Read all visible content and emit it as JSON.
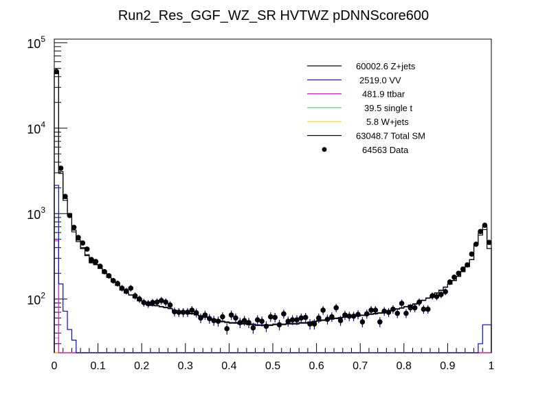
{
  "chart_data": {
    "type": "histogram",
    "title": "Run2_Res_GGF_WZ_SR HVTWZ  pDNNScore600",
    "xlabel": "",
    "ylabel": "",
    "xlim": [
      0,
      1
    ],
    "ylim": [
      23.5,
      110000
    ],
    "yscale": "log",
    "bin_width": 0.01,
    "x_tick_labels": [
      "0",
      "0.1",
      "0.2",
      "0.3",
      "0.4",
      "0.5",
      "0.6",
      "0.7",
      "0.8",
      "0.9",
      "1"
    ],
    "y_tick_labels": [
      {
        "base": "10",
        "exp": "2"
      },
      {
        "base": "10",
        "exp": "3"
      },
      {
        "base": "10",
        "exp": "4"
      },
      {
        "base": "10",
        "exp": "5"
      }
    ],
    "legend_position": "top-right",
    "legend": [
      {
        "value": "60002.6",
        "name": "Z+jets",
        "color": "#000000",
        "style": "line"
      },
      {
        "value": "2519.0",
        "name": "VV",
        "color": "#0000ff",
        "style": "line"
      },
      {
        "value": "481.9",
        "name": "ttbar",
        "color": "#ff00ff",
        "style": "line"
      },
      {
        "value": "39.5",
        "name": "single t",
        "color": "#66cc66",
        "style": "line"
      },
      {
        "value": "5.8",
        "name": "W+jets",
        "color": "#ffcc00",
        "style": "line"
      },
      {
        "value": "63048.7",
        "name": "Total SM",
        "color": "#000000",
        "style": "line"
      },
      {
        "value": "64563",
        "name": "Data",
        "color": "#000000",
        "style": "marker"
      }
    ],
    "series": [
      {
        "name": "Total SM",
        "color": "#000000",
        "values": [
          46000,
          3100,
          1500,
          1000,
          640,
          490,
          400,
          330,
          270,
          255,
          230,
          200,
          180,
          160,
          145,
          128,
          118,
          112,
          104,
          96,
          90,
          86,
          85,
          84,
          82,
          80,
          78,
          74,
          72,
          70,
          69,
          68,
          66,
          64,
          62,
          60,
          58,
          57,
          55,
          54,
          53,
          53,
          52,
          52,
          51,
          51,
          50,
          50,
          50,
          50,
          51,
          51,
          51,
          52,
          52,
          52,
          53,
          53,
          54,
          55,
          56,
          57,
          58,
          59,
          60,
          61,
          62,
          63,
          64,
          64,
          65,
          66,
          67,
          68,
          69,
          71,
          73,
          75,
          77,
          79,
          82,
          85,
          88,
          92,
          97,
          103,
          110,
          118,
          127,
          138,
          150,
          165,
          185,
          210,
          240,
          290,
          440,
          590,
          700,
          440
        ]
      },
      {
        "name": "Z+jets",
        "color": "#000000",
        "values": [
          43385,
          2950,
          1428,
          956,
          610,
          470,
          388,
          322,
          265,
          252,
          228,
          199,
          179,
          159,
          144,
          127,
          117,
          111,
          103,
          95,
          89,
          85,
          84,
          83,
          81,
          79,
          77,
          73,
          71,
          69,
          68,
          67,
          65,
          63,
          61,
          59,
          57,
          56,
          54,
          53,
          52,
          52,
          51,
          51,
          50,
          50,
          49,
          49,
          49,
          49,
          50,
          50,
          50,
          51,
          51,
          51,
          52,
          52,
          53,
          54,
          55,
          56,
          57,
          58,
          59,
          60,
          61,
          62,
          63,
          63,
          64,
          65,
          66,
          67,
          68,
          70,
          72,
          74,
          76,
          78,
          81,
          84,
          87,
          91,
          96,
          102,
          109,
          117,
          126,
          137,
          149,
          164,
          184,
          209,
          239,
          289,
          436,
          560,
          650,
          390
        ]
      },
      {
        "name": "VV",
        "color": "#0000ff",
        "values": [
          2140,
          150,
          72,
          44,
          33,
          20,
          15,
          12,
          10,
          9,
          8,
          7,
          6,
          6,
          5,
          5,
          5,
          4,
          4,
          4,
          4,
          4,
          4,
          4,
          4,
          4,
          4,
          4,
          4,
          4,
          4,
          4,
          4,
          4,
          4,
          4,
          4,
          4,
          4,
          4,
          4,
          4,
          4,
          4,
          4,
          4,
          4,
          4,
          4,
          4,
          4,
          4,
          4,
          4,
          4,
          4,
          4,
          4,
          4,
          4,
          4,
          4,
          4,
          4,
          4,
          4,
          4,
          4,
          4,
          4,
          4,
          4,
          4,
          4,
          4,
          4,
          4,
          4,
          4,
          4,
          4,
          4,
          4,
          4,
          4,
          4,
          4,
          4,
          4,
          4,
          4,
          5,
          5,
          5,
          6,
          7,
          10,
          30,
          50,
          50
        ]
      },
      {
        "name": "ttbar",
        "color": "#ff00ff",
        "values": [
          480,
          1,
          0,
          0,
          0,
          0,
          0,
          0,
          0,
          0,
          0,
          0,
          0,
          0,
          0,
          0,
          0,
          0,
          0,
          0,
          0,
          0,
          0,
          0,
          0,
          0,
          0,
          0,
          0,
          0,
          0,
          0,
          0,
          0,
          0,
          0,
          0,
          0,
          0,
          0,
          0,
          0,
          0,
          0,
          0,
          0,
          0,
          0,
          0,
          0,
          0,
          0,
          0,
          0,
          0,
          0,
          0,
          0,
          0,
          0,
          0,
          0,
          0,
          0,
          0,
          0,
          0,
          0,
          0,
          0,
          0,
          0,
          0,
          0,
          0,
          0,
          0,
          0,
          0,
          0,
          0,
          0,
          0,
          0,
          0,
          0,
          0,
          0,
          0,
          0,
          0,
          0,
          0,
          0,
          0,
          0,
          0,
          0,
          0,
          0
        ]
      },
      {
        "name": "single t",
        "color": "#66cc66",
        "values": [
          35,
          1,
          0,
          0,
          0,
          0,
          0,
          0,
          0,
          0,
          0,
          0,
          0,
          0,
          0,
          0,
          0,
          0,
          0,
          0,
          0,
          0,
          0,
          0,
          0,
          0,
          0,
          0,
          0,
          0,
          0,
          0,
          0,
          0,
          0,
          0,
          0,
          0,
          0,
          0,
          0,
          0,
          0,
          0,
          0,
          0,
          0,
          0,
          0,
          0,
          0,
          0,
          0,
          0,
          0,
          0,
          0,
          0,
          0,
          0,
          0,
          0,
          0,
          0,
          0,
          0,
          0,
          0,
          0,
          0,
          0,
          0,
          0,
          0,
          0,
          0,
          0,
          0,
          0,
          0,
          0,
          0,
          0,
          0,
          0,
          0,
          0,
          0,
          0,
          0,
          0,
          0,
          0,
          0,
          0,
          0,
          0,
          0,
          0,
          0
        ]
      },
      {
        "name": "W+jets",
        "color": "#ffcc00",
        "values": [
          5,
          0.1,
          0,
          0,
          0,
          0,
          0,
          0,
          0,
          0,
          0,
          0,
          0,
          0,
          0,
          0,
          0,
          0,
          0,
          0,
          0,
          0,
          0,
          0,
          0,
          0,
          0,
          0,
          0,
          0,
          0,
          0,
          0,
          0,
          0,
          0,
          0,
          0,
          0,
          0,
          0,
          0,
          0,
          0,
          0,
          0,
          0,
          0,
          0,
          0,
          0,
          0,
          0,
          0,
          0,
          0,
          0,
          0,
          0,
          0,
          0,
          0,
          0,
          0,
          0,
          0,
          0,
          0,
          0,
          0,
          0,
          0,
          0,
          0,
          0,
          0,
          0,
          0,
          0,
          0,
          0,
          0,
          0,
          0,
          0,
          0,
          0,
          0,
          0,
          0,
          0,
          0,
          0,
          0,
          0,
          0,
          0,
          0,
          0,
          0
        ]
      },
      {
        "name": "Data",
        "color": "#000000",
        "values": [
          46100,
          3400,
          1590,
          950,
          690,
          525,
          453,
          384,
          290,
          275,
          242,
          209,
          187,
          164,
          152,
          134,
          124,
          134,
          109,
          100,
          91,
          88,
          91,
          92,
          96,
          92,
          85,
          71,
          70,
          70,
          70,
          74,
          69,
          60,
          65,
          59,
          56,
          55,
          62,
          45,
          65,
          60,
          53,
          56,
          53,
          46,
          57,
          55,
          48,
          62,
          61,
          50,
          67,
          55,
          57,
          57,
          60,
          61,
          51,
          51,
          60,
          74,
          58,
          62,
          79,
          56,
          65,
          63,
          63,
          66,
          54,
          67,
          74,
          74,
          54,
          72,
          70,
          76,
          68,
          89,
          68,
          79,
          79,
          92,
          76,
          76,
          109,
          107,
          113,
          122,
          158,
          180,
          200,
          224,
          251,
          336,
          438,
          617,
          730,
          460
        ]
      }
    ]
  }
}
